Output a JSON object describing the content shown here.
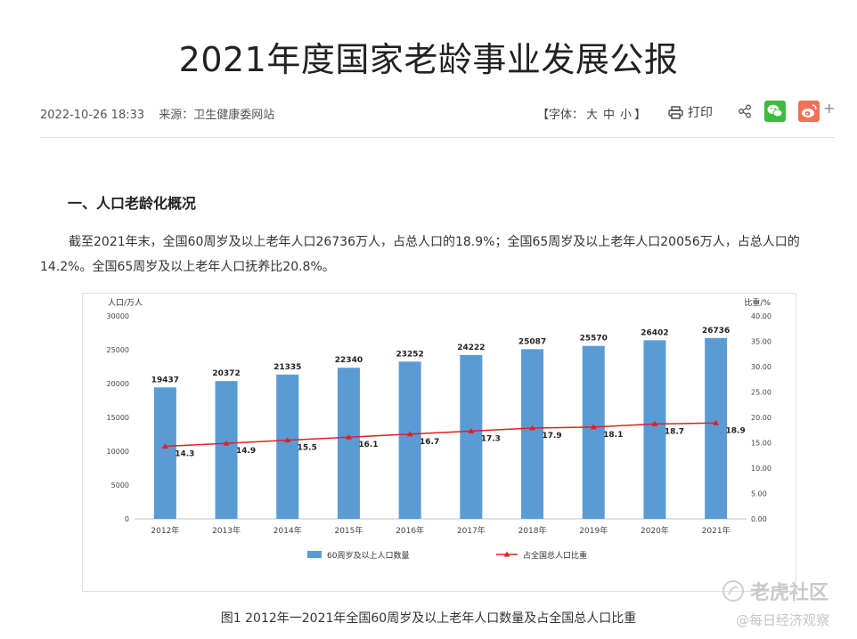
{
  "article": {
    "title": "2021年度国家老龄事业发展公报",
    "datetime": "2022-10-26 18:33",
    "source": "来源：卫生健康委网站",
    "font_label_prefix": "【字体：",
    "font_large": "大",
    "font_medium": "中",
    "font_small": "小",
    "font_label_suffix": "】",
    "print_label": "打印",
    "section_heading": "一、人口老龄化概况",
    "paragraph": "截至2021年末，全国60周岁及以上老年人口26736万人，占总人口的18.9%；全国65周岁及以上老年人口20056万人，占总人口的14.2%。全国65周岁及以上老年人口抚养比20.8%。",
    "figure_caption": "图1  2012年一2021年全国60周岁及以上老年人口数量及占全国总人口比重"
  },
  "watermark": {
    "brand": "老虎社区",
    "handle": "@每日经济观察"
  },
  "colors": {
    "bar": "#5b9bd5",
    "line": "#e02020",
    "wechat": "#3dbb3d",
    "weibo": "#f26f5a"
  },
  "chart_data": {
    "type": "bar",
    "categories": [
      "2012年",
      "2013年",
      "2014年",
      "2015年",
      "2016年",
      "2017年",
      "2018年",
      "2019年",
      "2020年",
      "2021年"
    ],
    "series": [
      {
        "name": "60周岁及以上人口数量",
        "type": "bar",
        "axis": "left",
        "values": [
          19437,
          20372,
          21335,
          22340,
          23252,
          24222,
          25087,
          25570,
          26402,
          26736
        ]
      },
      {
        "name": "占全国总人口比重",
        "type": "line",
        "axis": "right",
        "values": [
          14.3,
          14.9,
          15.5,
          16.1,
          16.7,
          17.3,
          17.9,
          18.1,
          18.7,
          18.9
        ]
      }
    ],
    "ylabel": "人口/万人",
    "ylabel_right": "比重/%",
    "ylim": [
      0,
      30000
    ],
    "ylim_right": [
      0,
      40
    ],
    "yticks": [
      "0",
      "5000",
      "10000",
      "15000",
      "20000",
      "25000",
      "30000"
    ],
    "yticks_right": [
      "0.00",
      "5.00",
      "10.00",
      "15.00",
      "20.00",
      "25.00",
      "30.00",
      "35.00",
      "40.00"
    ],
    "legend_position": "bottom",
    "grid": false
  }
}
